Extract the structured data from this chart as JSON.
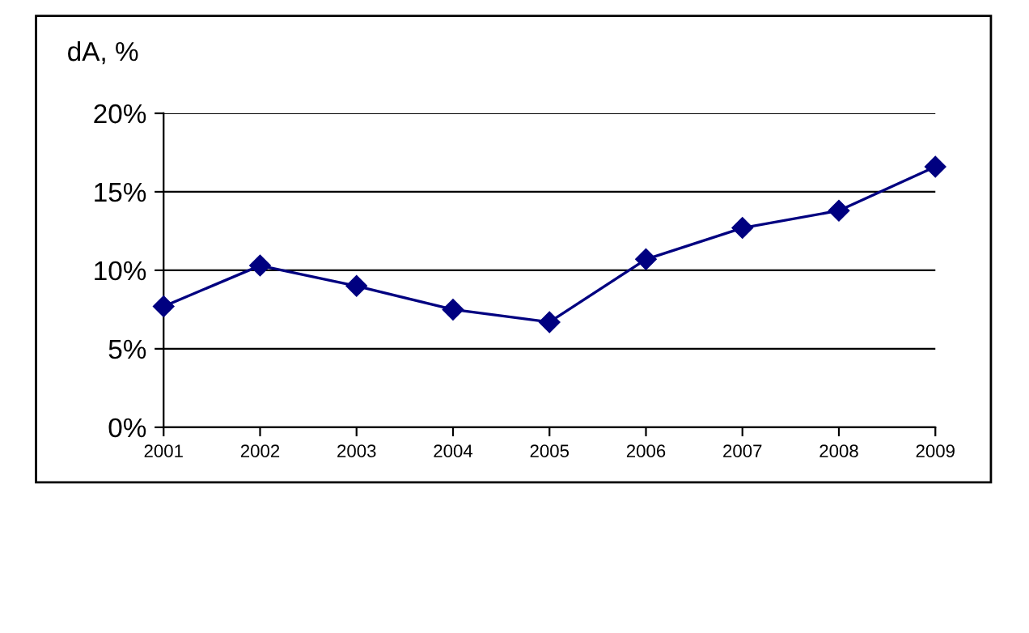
{
  "chart_data": {
    "type": "line",
    "ylabel": "dA, %",
    "categories": [
      "2001",
      "2002",
      "2003",
      "2004",
      "2005",
      "2006",
      "2007",
      "2008",
      "2009"
    ],
    "series": [
      {
        "color": "#000080",
        "values": [
          7.7,
          10.3,
          9.0,
          7.5,
          6.7,
          10.7,
          12.7,
          13.8,
          16.6
        ]
      }
    ],
    "ylim": [
      0,
      20
    ],
    "yticks": [
      {
        "value": 0,
        "label": "0%"
      },
      {
        "value": 5,
        "label": "5%"
      },
      {
        "value": 10,
        "label": "10%"
      },
      {
        "value": 15,
        "label": "15%"
      },
      {
        "value": 20,
        "label": "20%"
      }
    ],
    "grid": "y",
    "marker": "diamond",
    "line_style": "solid"
  }
}
